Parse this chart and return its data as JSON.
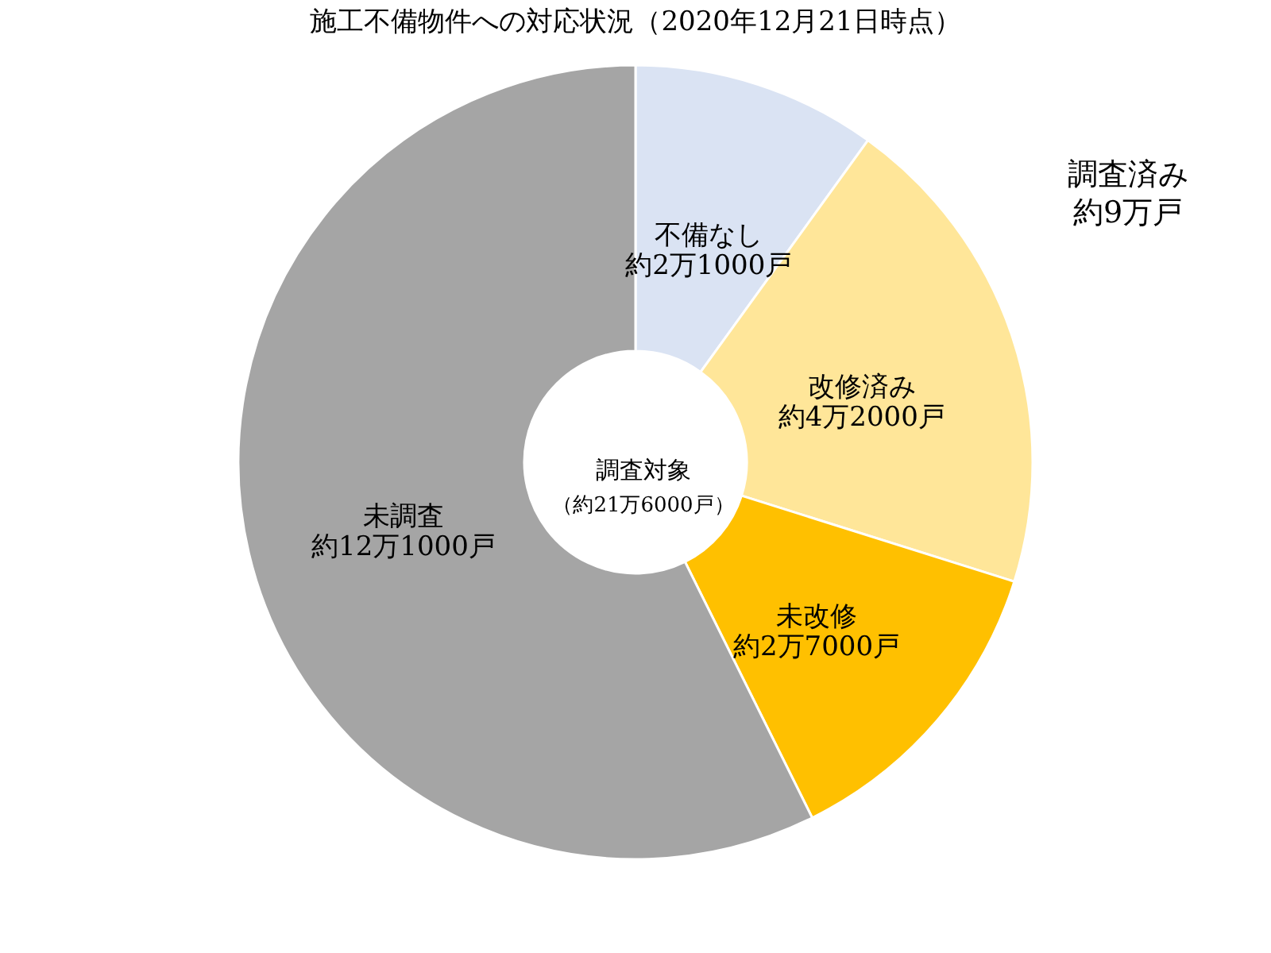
{
  "chart_data": {
    "type": "donut",
    "title": "施工不備物件への対応状況（2020年12月21日時点）",
    "categories": [
      "不備なし",
      "改修済み",
      "未改修",
      "未調査"
    ],
    "values": [
      9.95,
      19.91,
      12.8,
      57.34
    ],
    "value_labels": [
      "約2万1000戸",
      "約4万2000戸",
      "約2万7000戸",
      "約12万1000戸"
    ],
    "colors": [
      "#dae3f3",
      "#ffe699",
      "#ffc000",
      "#a5a5a5"
    ],
    "legend": false,
    "annotations": [
      "調査対象",
      "（約21万6000戸）",
      "調査済み",
      "約9万戸"
    ]
  }
}
